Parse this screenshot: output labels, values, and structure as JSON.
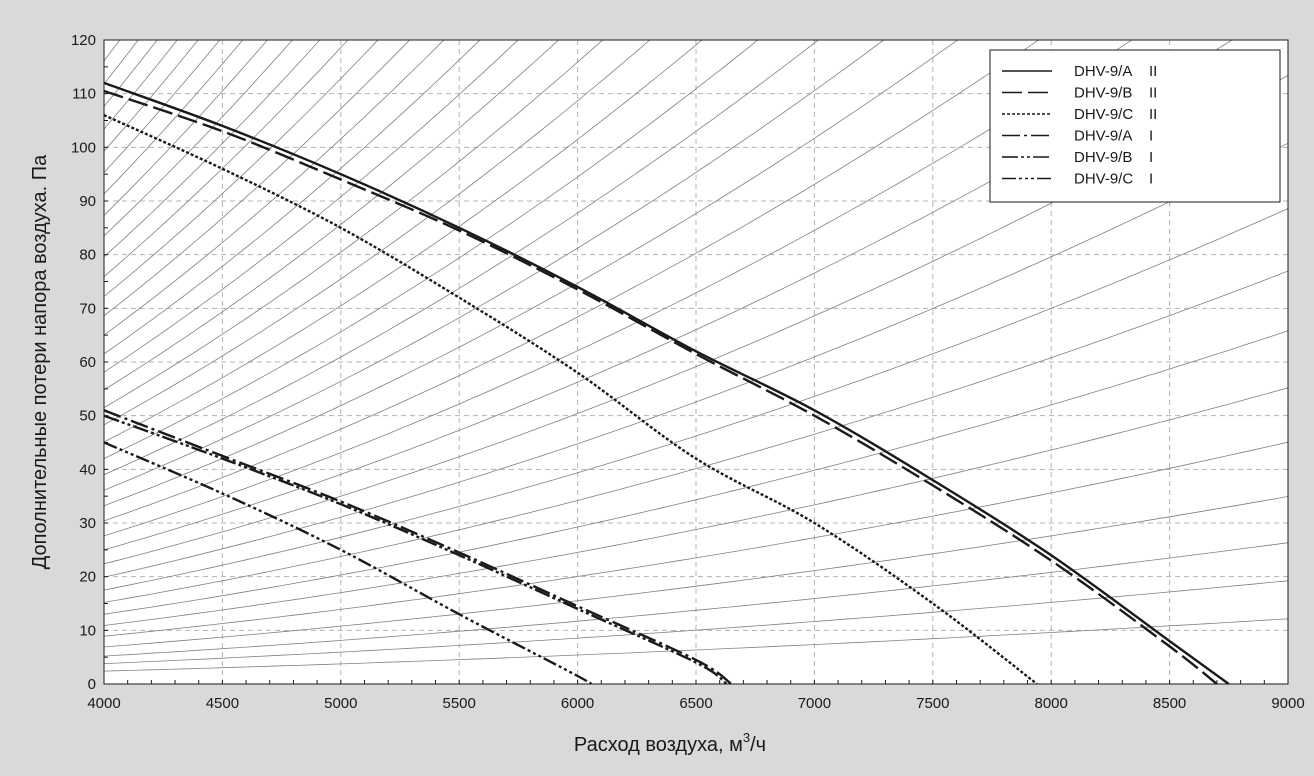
{
  "chart_data": {
    "type": "line",
    "xlabel_main": "Расход воздуха, м",
    "xlabel_sup": "3",
    "xlabel_tail": "/ч",
    "ylabel": "Дополнительные потери напора воздуха. Па",
    "xlim": [
      4000,
      9000
    ],
    "ylim": [
      0,
      120
    ],
    "xticks": [
      4000,
      4500,
      5000,
      5500,
      6000,
      6500,
      7000,
      7500,
      8000,
      8500,
      9000
    ],
    "yticks": [
      0,
      10,
      20,
      30,
      40,
      50,
      60,
      70,
      80,
      90,
      100,
      110,
      120
    ],
    "grid": true,
    "legend_position": "top-right",
    "background_colors": {
      "page": "#d9d9d9",
      "plot": "#ffffff",
      "grid": "#b3b3b3",
      "curves": "#1a1a1a",
      "network": "#808080"
    },
    "series": [
      {
        "name": "DHV-9/A",
        "mode": "II",
        "style": "solid",
        "x": [
          4000,
          4500,
          5000,
          5500,
          6000,
          6500,
          7000,
          7500,
          8000,
          8500,
          8750
        ],
        "y": [
          112,
          104,
          95,
          85,
          74,
          62,
          51,
          38,
          24,
          8,
          0
        ]
      },
      {
        "name": "DHV-9/B",
        "mode": "II",
        "style": "dash",
        "x": [
          4000,
          4500,
          5000,
          5500,
          6000,
          6500,
          7000,
          7500,
          8000,
          8500,
          8700
        ],
        "y": [
          110.5,
          103,
          94,
          84.5,
          73.5,
          61.5,
          50,
          37,
          23,
          7,
          0
        ]
      },
      {
        "name": "DHV-9/C",
        "mode": "II",
        "style": "dot",
        "x": [
          4000,
          4500,
          5000,
          5500,
          6000,
          6500,
          7000,
          7500,
          7940
        ],
        "y": [
          106,
          96,
          85,
          72,
          58,
          42,
          30,
          15,
          0
        ]
      },
      {
        "name": "DHV-9/A",
        "mode": "I",
        "style": "dashdot",
        "x": [
          4000,
          4500,
          5000,
          5500,
          6000,
          6500,
          6650
        ],
        "y": [
          51,
          42.5,
          34,
          24.5,
          14.5,
          4.5,
          0
        ]
      },
      {
        "name": "DHV-9/B",
        "mode": "I",
        "style": "dashdotdot",
        "x": [
          4000,
          4500,
          5000,
          5500,
          6000,
          6500,
          6630
        ],
        "y": [
          50,
          42,
          33.5,
          24,
          14,
          4,
          0
        ]
      },
      {
        "name": "DHV-9/C",
        "mode": "I",
        "style": "dashdotdotdot",
        "x": [
          4000,
          4500,
          5000,
          5500,
          6000,
          6050
        ],
        "y": [
          45,
          35.5,
          25,
          13,
          1.5,
          0
        ]
      }
    ],
    "system_curve_ref_pressures_at_4000": [
      2.4,
      3.8,
      5.2,
      6.9,
      8.9,
      10.9,
      13.0,
      15.2,
      17.5,
      19.9,
      22.4,
      25.0,
      27.6,
      30.4,
      33.2,
      36.1,
      39.0,
      42.0,
      45.1,
      48.3,
      51.5,
      54.8,
      58.1,
      61.5,
      65.0,
      68.6,
      72.2,
      75.9,
      79.6,
      83.5,
      87.3,
      91.3,
      95.3,
      99.3,
      103.4,
      107.6,
      111.8,
      116.1,
      120.0
    ]
  }
}
